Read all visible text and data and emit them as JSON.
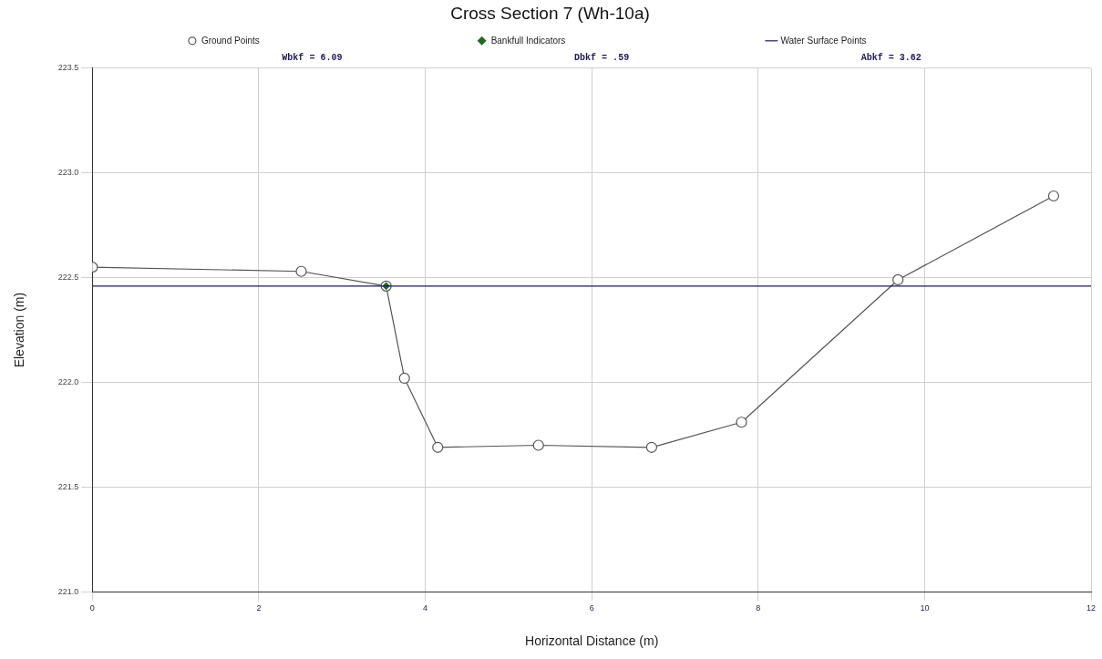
{
  "chart_data": {
    "type": "line",
    "title": "Cross Section 7 (Wh-10a)",
    "xlabel": "Horizontal Distance (m)",
    "ylabel": "Elevation (m)",
    "annotations": [
      "Wbkf = 6.09",
      "Dbkf = .59",
      "Abkf = 3.62"
    ],
    "xlim": [
      0,
      12
    ],
    "xticks": [
      0,
      2,
      4,
      6,
      8,
      10,
      12
    ],
    "ylim": [
      221.0,
      223.5
    ],
    "yticks": [
      {
        "value": 221,
        "label": "221.0"
      },
      {
        "value": 221.5,
        "label": "221.5"
      },
      {
        "value": 222,
        "label": "222.0"
      },
      {
        "value": 222.5,
        "label": "222.5"
      },
      {
        "value": 223,
        "label": "223.0"
      },
      {
        "value": 223.5,
        "label": "223.5"
      }
    ],
    "grid": true,
    "legend": "top",
    "series": [
      {
        "name": "Ground Points",
        "color": "#555555",
        "marker": "circle",
        "x": [
          0,
          2.51,
          3.53,
          3.75,
          4.15,
          5.36,
          6.72,
          7.8,
          9.68,
          11.55
        ],
        "values": [
          222.55,
          222.53,
          222.46,
          222.02,
          221.69,
          221.7,
          221.69,
          221.81,
          222.49,
          222.89
        ]
      },
      {
        "name": "Bankfull Indicators",
        "type": "scatter",
        "color": "#1e6b1e",
        "marker": "diamond",
        "x": [
          3.53
        ],
        "values": [
          222.46
        ]
      },
      {
        "name": "Water Surface Points",
        "type": "line",
        "color": "#1a1a5e",
        "marker": "none",
        "x": [
          0,
          12
        ],
        "values": [
          222.46,
          222.46
        ]
      }
    ]
  }
}
